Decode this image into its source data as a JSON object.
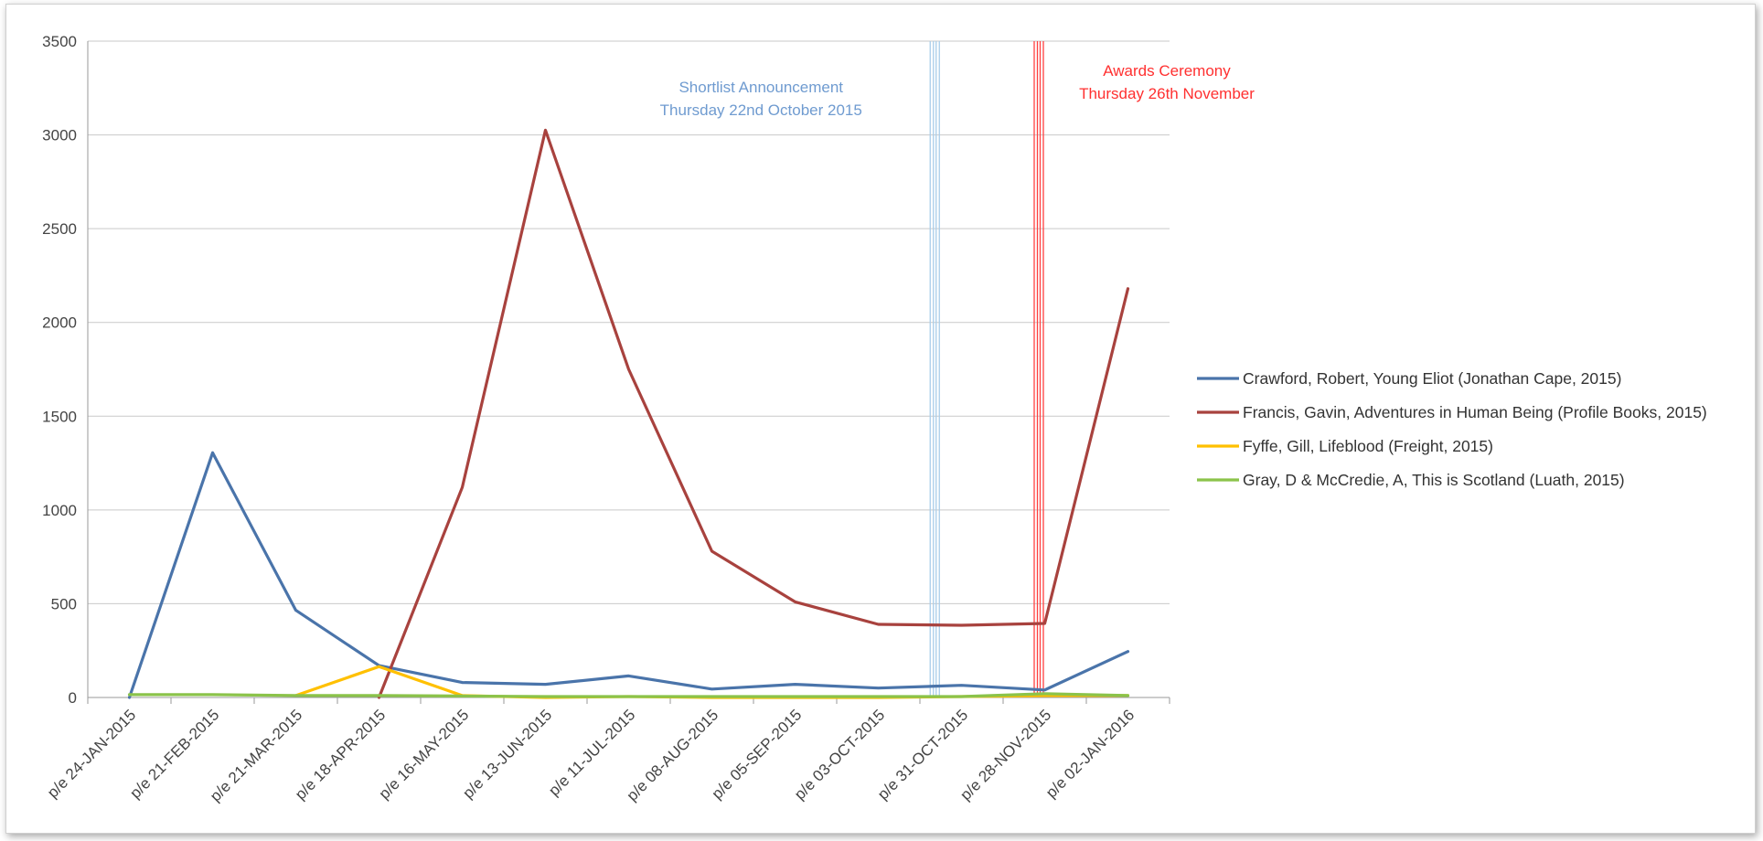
{
  "chart_data": {
    "type": "line",
    "title": "",
    "xlabel": "",
    "ylabel": "",
    "ylim": [
      0,
      3500
    ],
    "yticks": [
      0,
      500,
      1000,
      1500,
      2000,
      2500,
      3000,
      3500
    ],
    "grid": "horizontal",
    "legend": "right",
    "categories": [
      "p/e 24-JAN-2015",
      "p/e 21-FEB-2015",
      "p/e 21-MAR-2015",
      "p/e 18-APR-2015",
      "p/e 16-MAY-2015",
      "p/e 13-JUN-2015",
      "p/e 11-JUL-2015",
      "p/e 08-AUG-2015",
      "p/e 05-SEP-2015",
      "p/e 03-OCT-2015",
      "p/e 31-OCT-2015",
      "p/e 28-NOV-2015",
      "p/e 02-JAN-2016"
    ],
    "series": [
      {
        "name": "Crawford, Robert, Young Eliot (Jonathan Cape, 2015)",
        "color": "#4a74aa",
        "values": [
          0,
          1305,
          465,
          170,
          80,
          70,
          115,
          45,
          70,
          50,
          65,
          40,
          245
        ]
      },
      {
        "name": "Francis, Gavin, Adventures in Human Being (Profile Books, 2015)",
        "color": "#a8423e",
        "values": [
          null,
          null,
          null,
          0,
          1120,
          3025,
          1750,
          780,
          510,
          390,
          385,
          395,
          2180
        ]
      },
      {
        "name": "Fyffe, Gill, Lifeblood (Freight, 2015)",
        "color": "#ffc000",
        "values": [
          null,
          null,
          10,
          165,
          10,
          0,
          5,
          0,
          0,
          0,
          5,
          10,
          10
        ]
      },
      {
        "name": "Gray, D & McCredie, A, This is Scotland (Luath, 2015)",
        "color": "#8bc34a",
        "values": [
          15,
          15,
          10,
          10,
          8,
          5,
          5,
          5,
          5,
          5,
          5,
          20,
          10
        ]
      }
    ],
    "annotations": [
      {
        "lines": [
          "Shortlist Announcement",
          "Thursday 22nd October 2015"
        ],
        "color": "#6f9bd0",
        "line_color": "#a9cdea",
        "x_date": "2015-10-22"
      },
      {
        "lines": [
          "Awards Ceremony",
          "Thursday 26th November"
        ],
        "color": "#ff3030",
        "line_color": "#ff4040",
        "x_date": "2015-11-26"
      }
    ]
  }
}
